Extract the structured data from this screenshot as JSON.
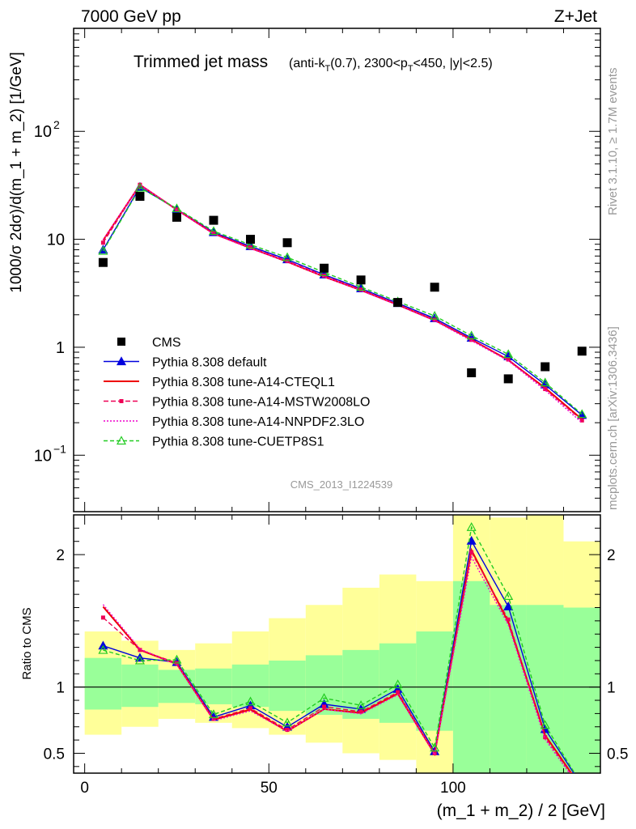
{
  "header": {
    "left": "7000 GeV pp",
    "right": "Z+Jet"
  },
  "side": {
    "rivet": "Rivet 3.1.10, ≥ 1.7M events",
    "mcplots": "mcplots.cern.ch [arXiv:1306.3436]"
  },
  "chart_data": {
    "type": "line",
    "title": "Trimmed jet mass",
    "subtitle": "(anti-kT(0.7), 2300<pT<450, |y|<2.5)",
    "subtitle_parts": {
      "open": "(anti-k",
      "sub1": "T",
      "mid": "(0.7), 2300<p",
      "sub2": "T",
      "close": "<450, |y|<2.5)"
    },
    "watermark": "CMS_2013_I1224539",
    "xlabel": "(m_1 + m_2) / 2 [GeV]",
    "ylabel": "1000/σ 2dσ)/d(m_1 + m_2) [1/GeV]",
    "ratio_ylabel": "Ratio to CMS",
    "xlim": [
      -3,
      140
    ],
    "ylim": [
      0.03,
      900
    ],
    "yscale": "log",
    "ratio_ylim": [
      0.35,
      2.3
    ],
    "x_ticks": [
      "0",
      "50",
      "100"
    ],
    "x_tick_values": [
      0,
      50,
      100
    ],
    "y_ticks": [
      {
        "value": 100,
        "base": "10",
        "exp": "2"
      },
      {
        "value": 10,
        "base": "10",
        "exp": ""
      },
      {
        "value": 1,
        "base": "1",
        "exp": ""
      },
      {
        "value": 0.1,
        "base": "10",
        "exp": "−1"
      }
    ],
    "ratio_ticks": [
      "0.5",
      "1",
      "2"
    ],
    "ratio_tick_values": [
      0.5,
      1,
      2
    ],
    "x": [
      5,
      15,
      25,
      35,
      45,
      55,
      65,
      75,
      85,
      95,
      105,
      115,
      125,
      135
    ],
    "data": {
      "name": "CMS",
      "values": [
        6.1,
        25,
        16,
        15,
        10,
        9.3,
        5.4,
        4.2,
        2.6,
        3.6,
        0.58,
        0.51,
        0.66,
        0.92
      ],
      "band_inner": [
        [
          0.83,
          1.22
        ],
        [
          0.85,
          1.17
        ],
        [
          0.88,
          1.13
        ],
        [
          0.87,
          1.14
        ],
        [
          0.85,
          1.17
        ],
        [
          0.82,
          1.2
        ],
        [
          0.79,
          1.24
        ],
        [
          0.76,
          1.28
        ],
        [
          0.73,
          1.33
        ],
        [
          0.67,
          1.42
        ],
        [
          0.2,
          1.8
        ],
        [
          0.2,
          1.62
        ],
        [
          0.2,
          1.62
        ],
        [
          0.2,
          1.6
        ]
      ],
      "band_outer": [
        [
          0.64,
          1.42
        ],
        [
          0.7,
          1.35
        ],
        [
          0.76,
          1.28
        ],
        [
          0.73,
          1.33
        ],
        [
          0.69,
          1.42
        ],
        [
          0.64,
          1.52
        ],
        [
          0.58,
          1.62
        ],
        [
          0.5,
          1.75
        ],
        [
          0.45,
          1.85
        ],
        [
          0.2,
          1.8
        ],
        [
          0.2,
          2.3
        ],
        [
          0.2,
          2.28
        ],
        [
          0.2,
          2.3
        ],
        [
          0.2,
          2.1
        ]
      ]
    },
    "series": [
      {
        "name": "Pythia 8.308 default",
        "color": "#0000dd",
        "dash": "",
        "marker": "triangle",
        "values": [
          8.0,
          30.5,
          19.0,
          11.6,
          8.6,
          6.5,
          4.7,
          3.5,
          2.56,
          1.85,
          1.22,
          0.82,
          0.45,
          0.235
        ]
      },
      {
        "name": "Pythia 8.308 tune-A14-CTEQL1",
        "color": "#ee0000",
        "dash": "",
        "marker": "none",
        "values": [
          9.8,
          32.0,
          18.8,
          11.3,
          8.3,
          6.2,
          4.5,
          3.38,
          2.47,
          1.78,
          1.18,
          0.76,
          0.42,
          0.215
        ]
      },
      {
        "name": "Pythia 8.308 tune-A14-MSTW2008LO",
        "color": "#ee0055",
        "dash": "6,3",
        "marker": "square",
        "values": [
          9.3,
          32.0,
          18.9,
          11.4,
          8.4,
          6.3,
          4.6,
          3.42,
          2.5,
          1.8,
          1.17,
          0.77,
          0.41,
          0.21
        ]
      },
      {
        "name": "Pythia 8.308 tune-A14-NNPDF2.3LO",
        "color": "#ee00cc",
        "dash": "2,2",
        "marker": "none",
        "values": [
          9.9,
          32.2,
          18.7,
          11.2,
          8.2,
          6.2,
          4.5,
          3.35,
          2.45,
          1.76,
          1.15,
          0.75,
          0.4,
          0.2
        ]
      },
      {
        "name": "Pythia 8.308 tune-CUETP8S1",
        "color": "#22cc22",
        "dash": "5,3",
        "marker": "triangle-open",
        "values": [
          7.8,
          30.0,
          19.3,
          11.9,
          8.9,
          6.8,
          4.95,
          3.62,
          2.65,
          1.95,
          1.28,
          0.86,
          0.47,
          0.24
        ]
      }
    ]
  }
}
